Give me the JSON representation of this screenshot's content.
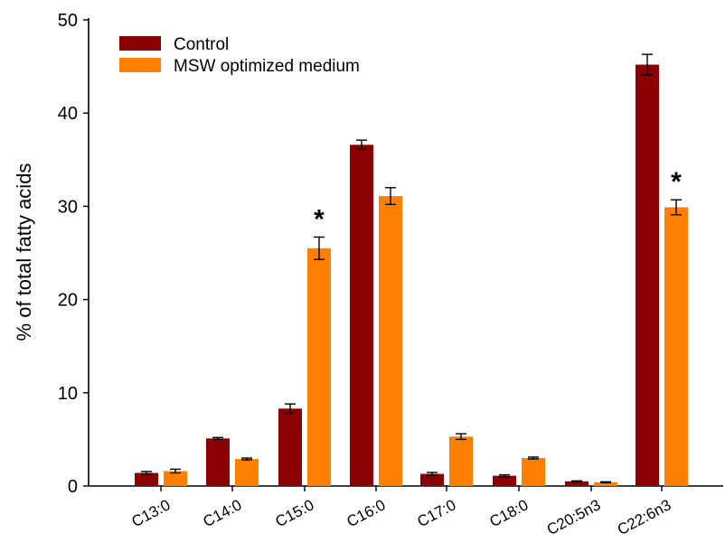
{
  "chart_data": {
    "type": "bar",
    "title": "",
    "xlabel": "",
    "ylabel": "% of total fatty acids",
    "ylim": [
      0,
      50
    ],
    "yticks": [
      0,
      10,
      20,
      30,
      40,
      50
    ],
    "legend_position": "top-left",
    "categories": [
      "C13:0",
      "C14:0",
      "C15:0",
      "C16:0",
      "C17:0",
      "C18:0",
      "C20:5n3",
      "C22:6n3"
    ],
    "series": [
      {
        "name": "Control",
        "color": "#8B0000",
        "values": [
          1.4,
          5.1,
          8.3,
          36.6,
          1.3,
          1.1,
          0.5,
          45.2
        ],
        "errors": [
          0.15,
          0.1,
          0.5,
          0.5,
          0.15,
          0.1,
          0.05,
          1.1
        ]
      },
      {
        "name": "MSW optimized medium",
        "color": "#FF8000",
        "values": [
          1.6,
          2.9,
          25.5,
          31.1,
          5.3,
          3.0,
          0.4,
          29.9
        ],
        "errors": [
          0.2,
          0.1,
          1.2,
          0.9,
          0.3,
          0.1,
          0.05,
          0.8
        ]
      }
    ],
    "annotations": [
      {
        "category": "C15:0",
        "series": "MSW optimized medium",
        "text": "*"
      },
      {
        "category": "C22:6n3",
        "series": "MSW optimized medium",
        "text": "*"
      }
    ]
  }
}
